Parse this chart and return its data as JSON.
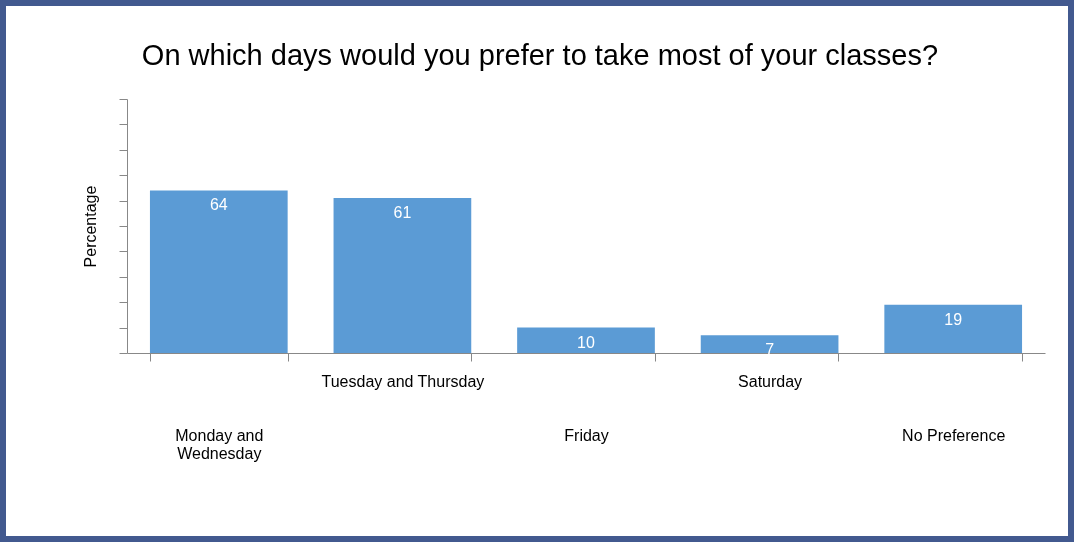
{
  "chart_data": {
    "type": "bar",
    "title": "On which days would you prefer to take most of your classes?",
    "ylabel": "Percentage",
    "categories": [
      "Monday and Wednesday",
      "Tuesday and Thursday",
      "Friday",
      "Saturday",
      "No Preference"
    ],
    "values": [
      64,
      61,
      10,
      7,
      19
    ],
    "color": "#5b9bd5",
    "data_labels": true,
    "ylim": [
      0,
      100
    ],
    "yticks": [
      {
        "value": 0,
        "label": null
      },
      {
        "value": 10,
        "label": null
      },
      {
        "value": 20,
        "label": null
      },
      {
        "value": 30,
        "label": null
      },
      {
        "value": 40,
        "label": null
      },
      {
        "value": 50,
        "label": null
      },
      {
        "value": 60,
        "label": null
      },
      {
        "value": 70,
        "label": null
      },
      {
        "value": 80,
        "label": null
      },
      {
        "value": 90,
        "label": null
      },
      {
        "value": 100,
        "label": null
      }
    ],
    "grid": false
  }
}
